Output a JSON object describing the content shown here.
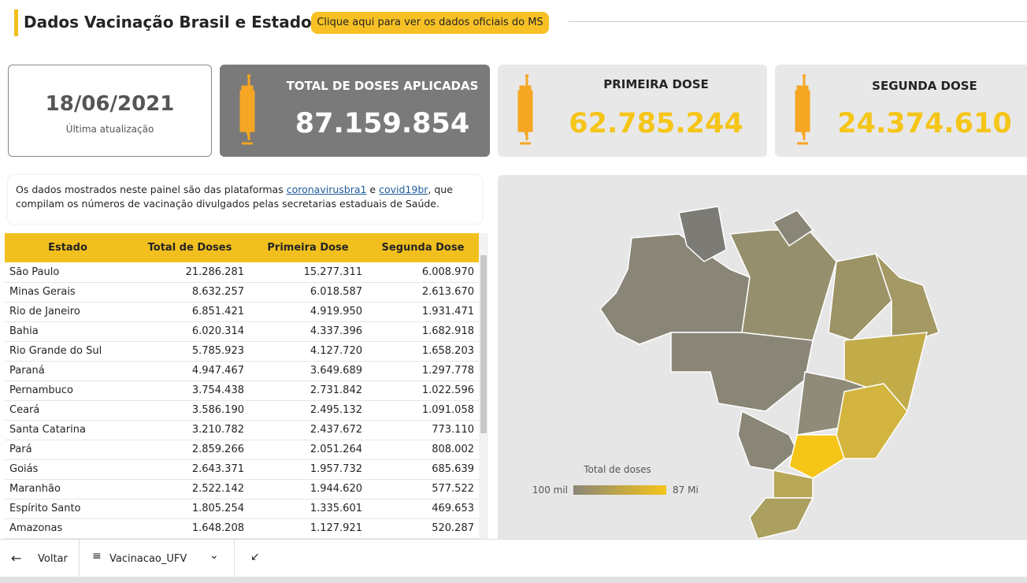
{
  "header": {
    "title": "Dados Vacinação Brasil e Estados",
    "button": "Clique aqui para ver os dados oficiais do MS"
  },
  "cards": [
    {
      "value": "18/06/2021",
      "label": "Última atualização"
    },
    {
      "label": "TOTAL DE DOSES APLICADAS",
      "value": "87.159.854"
    },
    {
      "label": "PRIMEIRA DOSE",
      "value": "62.785.244"
    },
    {
      "label": "SEGUNDA DOSE",
      "value": "24.374.610"
    }
  ],
  "info": {
    "before": "Os dados mostrados neste painel são das plataformas ",
    "link1": "coronavirusbra1",
    "middle": " e ",
    "link2": "covid19br",
    "after": ", que compilam os números de vacinação divulgados pelas secretarias estaduais de Saúde."
  },
  "table": {
    "columns": [
      "Estado",
      "Total de Doses",
      "Primeira Dose",
      "Segunda Dose"
    ],
    "rows": [
      [
        "São Paulo",
        "21.286.281",
        "15.277.311",
        "6.008.970"
      ],
      [
        "Minas Gerais",
        "8.632.257",
        "6.018.587",
        "2.613.670"
      ],
      [
        "Rio de Janeiro",
        "6.851.421",
        "4.919.950",
        "1.931.471"
      ],
      [
        "Bahia",
        "6.020.314",
        "4.337.396",
        "1.682.918"
      ],
      [
        "Rio Grande do Sul",
        "5.785.923",
        "4.127.720",
        "1.658.203"
      ],
      [
        "Paraná",
        "4.947.467",
        "3.649.689",
        "1.297.778"
      ],
      [
        "Pernambuco",
        "3.754.438",
        "2.731.842",
        "1.022.596"
      ],
      [
        "Ceará",
        "3.586.190",
        "2.495.132",
        "1.091.058"
      ],
      [
        "Santa Catarina",
        "3.210.782",
        "2.437.672",
        "773.110"
      ],
      [
        "Pará",
        "2.859.266",
        "2.051.264",
        "808.002"
      ],
      [
        "Goiás",
        "2.643.371",
        "1.957.732",
        "685.639"
      ],
      [
        "Maranhão",
        "2.522.142",
        "1.944.620",
        "577.522"
      ],
      [
        "Espírito Santo",
        "1.805.254",
        "1.335.601",
        "469.653"
      ],
      [
        "Amazonas",
        "1.648.208",
        "1.127.921",
        "520.287"
      ]
    ]
  },
  "map": {
    "legend_title": "Total de doses",
    "legend_min": "100 mil",
    "legend_max": "87 Mi"
  },
  "footer": {
    "back": "Voltar",
    "page": "Vacinacao_UFV"
  }
}
